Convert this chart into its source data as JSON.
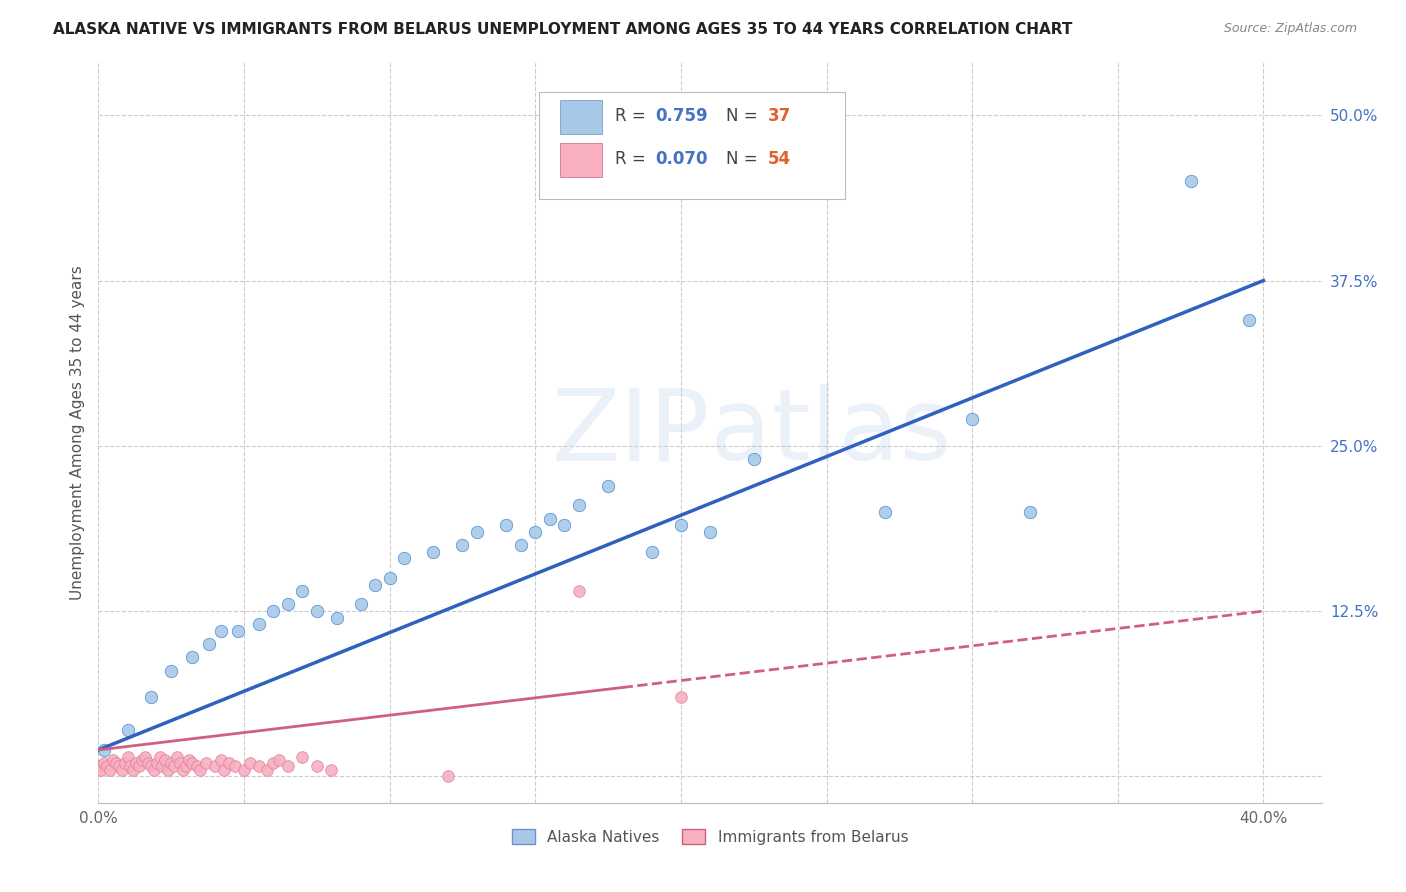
{
  "title": "ALASKA NATIVE VS IMMIGRANTS FROM BELARUS UNEMPLOYMENT AMONG AGES 35 TO 44 YEARS CORRELATION CHART",
  "source": "Source: ZipAtlas.com",
  "ylabel": "Unemployment Among Ages 35 to 44 years",
  "xlim": [
    0.0,
    0.42
  ],
  "ylim": [
    -0.02,
    0.54
  ],
  "xtick_pos": [
    0.0,
    0.05,
    0.1,
    0.15,
    0.2,
    0.25,
    0.3,
    0.35,
    0.4
  ],
  "xticklabels": [
    "0.0%",
    "",
    "",
    "",
    "",
    "",
    "",
    "",
    "40.0%"
  ],
  "ytick_positions": [
    0.0,
    0.125,
    0.25,
    0.375,
    0.5
  ],
  "ytick_labels_right": [
    "",
    "12.5%",
    "25.0%",
    "37.5%",
    "50.0%"
  ],
  "watermark": "ZIPAtlas",
  "legend_r1": "0.759",
  "legend_n1": "37",
  "legend_r2": "0.070",
  "legend_n2": "54",
  "legend_label1": "Alaska Natives",
  "legend_label2": "Immigrants from Belarus",
  "color_blue": "#a8c8e8",
  "color_blue_line": "#3060c0",
  "color_pink": "#f8b0c0",
  "color_pink_line": "#d06080",
  "alaska_x": [
    0.002,
    0.01,
    0.018,
    0.025,
    0.032,
    0.038,
    0.042,
    0.048,
    0.055,
    0.06,
    0.065,
    0.07,
    0.075,
    0.082,
    0.09,
    0.095,
    0.1,
    0.105,
    0.115,
    0.125,
    0.13,
    0.14,
    0.145,
    0.15,
    0.155,
    0.16,
    0.165,
    0.175,
    0.19,
    0.2,
    0.21,
    0.225,
    0.27,
    0.3,
    0.32,
    0.375,
    0.395
  ],
  "alaska_y": [
    0.02,
    0.035,
    0.06,
    0.08,
    0.09,
    0.1,
    0.11,
    0.11,
    0.115,
    0.125,
    0.13,
    0.14,
    0.125,
    0.12,
    0.13,
    0.145,
    0.15,
    0.165,
    0.17,
    0.175,
    0.185,
    0.19,
    0.175,
    0.185,
    0.195,
    0.19,
    0.205,
    0.22,
    0.17,
    0.19,
    0.185,
    0.24,
    0.2,
    0.27,
    0.2,
    0.45,
    0.345
  ],
  "belarus_x": [
    0.0,
    0.001,
    0.002,
    0.003,
    0.004,
    0.005,
    0.006,
    0.007,
    0.008,
    0.009,
    0.01,
    0.011,
    0.012,
    0.013,
    0.014,
    0.015,
    0.016,
    0.017,
    0.018,
    0.019,
    0.02,
    0.021,
    0.022,
    0.023,
    0.024,
    0.025,
    0.026,
    0.027,
    0.028,
    0.029,
    0.03,
    0.031,
    0.032,
    0.034,
    0.035,
    0.037,
    0.04,
    0.042,
    0.043,
    0.045,
    0.047,
    0.05,
    0.052,
    0.055,
    0.058,
    0.06,
    0.062,
    0.065,
    0.07,
    0.075,
    0.08,
    0.12,
    0.165,
    0.2
  ],
  "belarus_y": [
    0.008,
    0.005,
    0.01,
    0.008,
    0.005,
    0.012,
    0.01,
    0.008,
    0.005,
    0.01,
    0.015,
    0.008,
    0.005,
    0.01,
    0.008,
    0.012,
    0.015,
    0.01,
    0.008,
    0.005,
    0.01,
    0.015,
    0.008,
    0.012,
    0.005,
    0.01,
    0.008,
    0.015,
    0.01,
    0.005,
    0.008,
    0.012,
    0.01,
    0.008,
    0.005,
    0.01,
    0.008,
    0.012,
    0.005,
    0.01,
    0.008,
    0.005,
    0.01,
    0.008,
    0.005,
    0.01,
    0.012,
    0.008,
    0.015,
    0.008,
    0.005,
    0.0,
    0.14,
    0.06
  ],
  "blue_line_x0": 0.0,
  "blue_line_y0": 0.02,
  "blue_line_x1": 0.4,
  "blue_line_y1": 0.375,
  "pink_line_x0": 0.0,
  "pink_line_y0": 0.02,
  "pink_line_x1": 0.4,
  "pink_line_y1": 0.125
}
